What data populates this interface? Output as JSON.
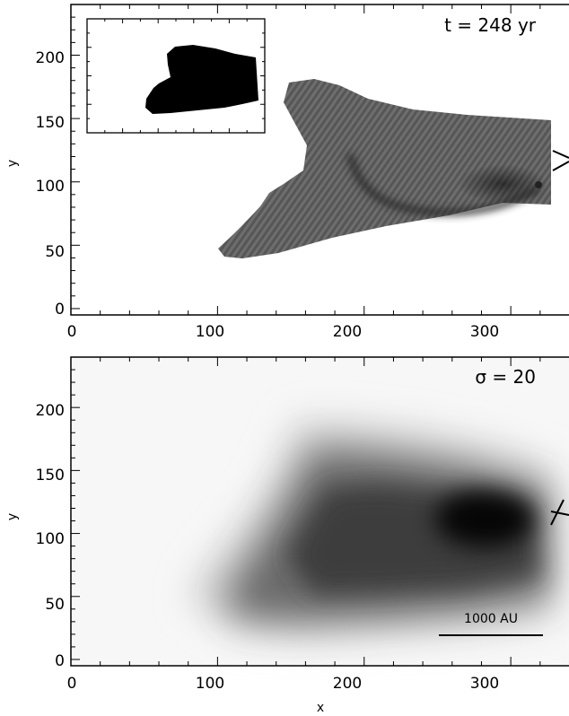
{
  "figure": {
    "panels": [
      "top",
      "bottom"
    ]
  },
  "chart_data": [
    {
      "id": "top",
      "type": "heatmap",
      "xlabel": "",
      "ylabel": "y",
      "xlim": [
        0,
        355
      ],
      "ylim": [
        -5,
        240
      ],
      "xticks": [
        "0",
        "100",
        "200",
        "300"
      ],
      "yticks": [
        "0",
        "50",
        "100",
        "150",
        "200"
      ],
      "annotation": "t = 248 yr",
      "grid": false,
      "colormap": "grayscale",
      "inset": {
        "xlim": [
          0,
          355
        ],
        "ylim": [
          0,
          240
        ],
        "fill": "#000000"
      }
    },
    {
      "id": "bottom",
      "type": "heatmap",
      "xlabel": "x",
      "ylabel": "y",
      "xlim": [
        0,
        355
      ],
      "ylim": [
        -5,
        240
      ],
      "xticks": [
        "0",
        "100",
        "200",
        "300"
      ],
      "yticks": [
        "0",
        "50",
        "100",
        "150",
        "200"
      ],
      "annotation": "σ = 20",
      "scale_bar": {
        "label": "1000 AU",
        "x_from": 265,
        "x_to": 340,
        "y": 22
      },
      "grid": false,
      "colormap": "grayscale"
    }
  ]
}
